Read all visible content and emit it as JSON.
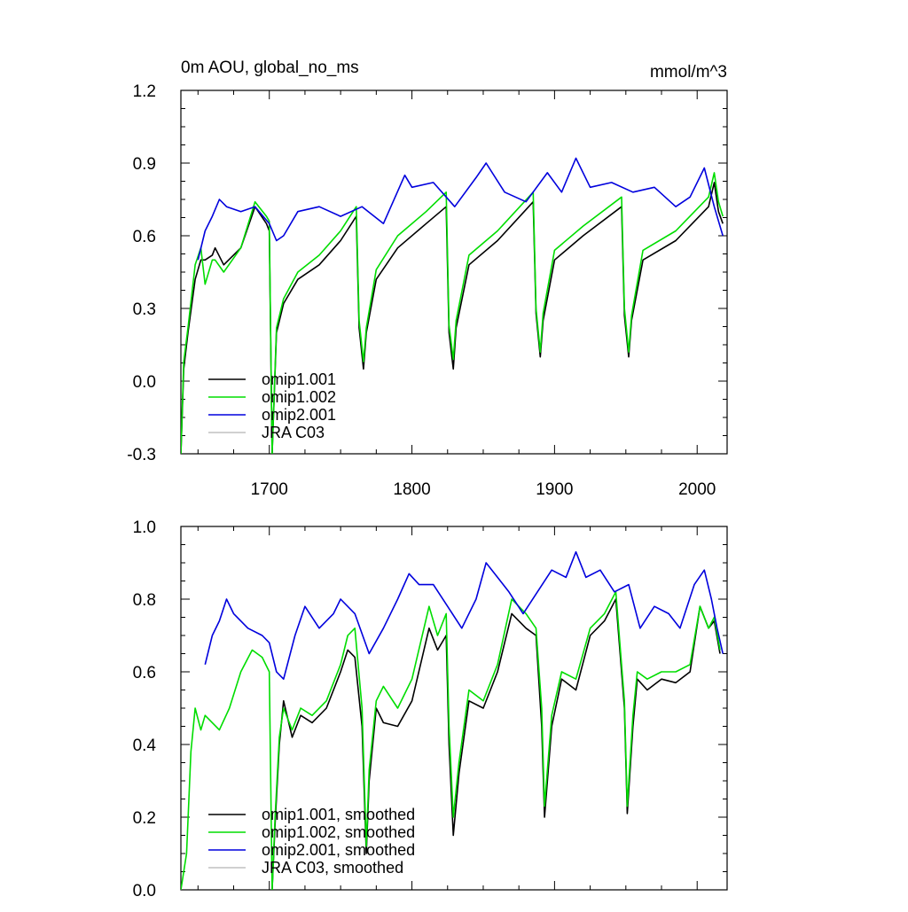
{
  "chart_data": [
    {
      "type": "line",
      "title": "0m AOU, global_no_ms",
      "units": "mmol/m^3",
      "xlim": [
        1638,
        2021
      ],
      "ylim": [
        -0.3,
        1.2
      ],
      "xticks": [
        {
          "value": 1700,
          "label": "1700"
        },
        {
          "value": 1800,
          "label": "1800"
        },
        {
          "value": 1900,
          "label": "1900"
        },
        {
          "value": 2000,
          "label": "2000"
        }
      ],
      "yticks": [
        {
          "value": 1.2,
          "label": "1.2"
        },
        {
          "value": 0.9,
          "label": "0.9"
        },
        {
          "value": 0.6,
          "label": "0.6"
        },
        {
          "value": 0.3,
          "label": "0.3"
        },
        {
          "value": 0.0,
          "label": "0.0"
        },
        {
          "value": -0.3,
          "label": "-0.3"
        }
      ],
      "legend_position": "bottom-left",
      "series": [
        {
          "name": "omip1.001",
          "color": "#000000",
          "x": [
            1638,
            1640,
            1643,
            1648,
            1652,
            1655,
            1660,
            1662,
            1668,
            1680,
            1690,
            1698,
            1700,
            1702,
            1705,
            1710,
            1720,
            1735,
            1750,
            1761,
            1763,
            1766,
            1768,
            1775,
            1790,
            1810,
            1824,
            1826,
            1829,
            1831,
            1840,
            1860,
            1885,
            1887,
            1890,
            1892,
            1900,
            1920,
            1947,
            1949,
            1952,
            1954,
            1962,
            1985,
            2008,
            2012,
            2015,
            2018
          ],
          "y": [
            -0.3,
            0.05,
            0.2,
            0.42,
            0.5,
            0.5,
            0.52,
            0.55,
            0.48,
            0.55,
            0.72,
            0.65,
            0.62,
            -0.3,
            0.2,
            0.32,
            0.42,
            0.48,
            0.58,
            0.68,
            0.22,
            0.05,
            0.2,
            0.42,
            0.55,
            0.65,
            0.72,
            0.2,
            0.05,
            0.22,
            0.48,
            0.58,
            0.74,
            0.28,
            0.1,
            0.25,
            0.5,
            0.6,
            0.72,
            0.27,
            0.1,
            0.25,
            0.5,
            0.58,
            0.72,
            0.82,
            0.7,
            0.65
          ]
        },
        {
          "name": "omip1.002",
          "color": "#00dd00",
          "x": [
            1638,
            1640,
            1643,
            1648,
            1652,
            1655,
            1660,
            1662,
            1668,
            1680,
            1690,
            1698,
            1700,
            1702,
            1705,
            1710,
            1720,
            1735,
            1750,
            1761,
            1763,
            1766,
            1768,
            1775,
            1790,
            1810,
            1824,
            1826,
            1829,
            1831,
            1840,
            1860,
            1885,
            1887,
            1890,
            1892,
            1900,
            1920,
            1947,
            1949,
            1952,
            1954,
            1962,
            1985,
            2008,
            2012,
            2015,
            2018
          ],
          "y": [
            -0.3,
            0.08,
            0.22,
            0.48,
            0.55,
            0.4,
            0.5,
            0.5,
            0.45,
            0.55,
            0.74,
            0.68,
            0.66,
            -0.3,
            0.22,
            0.34,
            0.45,
            0.52,
            0.62,
            0.72,
            0.25,
            0.08,
            0.22,
            0.46,
            0.6,
            0.7,
            0.78,
            0.23,
            0.09,
            0.25,
            0.52,
            0.62,
            0.78,
            0.3,
            0.12,
            0.28,
            0.54,
            0.64,
            0.76,
            0.3,
            0.12,
            0.27,
            0.54,
            0.62,
            0.76,
            0.86,
            0.74,
            0.68
          ]
        },
        {
          "name": "omip2.001",
          "color": "#0000dd",
          "x": [
            1650,
            1655,
            1660,
            1665,
            1670,
            1680,
            1690,
            1700,
            1705,
            1710,
            1720,
            1735,
            1750,
            1765,
            1780,
            1795,
            1800,
            1815,
            1830,
            1845,
            1852,
            1865,
            1880,
            1895,
            1905,
            1915,
            1925,
            1940,
            1955,
            1970,
            1985,
            1995,
            2005,
            2012,
            2018
          ],
          "y": [
            0.5,
            0.62,
            0.68,
            0.75,
            0.72,
            0.7,
            0.72,
            0.65,
            0.58,
            0.6,
            0.7,
            0.72,
            0.68,
            0.72,
            0.65,
            0.85,
            0.8,
            0.82,
            0.72,
            0.84,
            0.9,
            0.78,
            0.74,
            0.86,
            0.78,
            0.92,
            0.8,
            0.82,
            0.78,
            0.8,
            0.72,
            0.76,
            0.88,
            0.72,
            0.6
          ]
        },
        {
          "name": "JRA C03",
          "color": "#c0c0c0",
          "x": [],
          "y": []
        }
      ]
    },
    {
      "type": "line",
      "xlim": [
        1638,
        2021
      ],
      "ylim": [
        0.0,
        1.0
      ],
      "yticks": [
        {
          "value": 1.0,
          "label": "1.0"
        },
        {
          "value": 0.8,
          "label": "0.8"
        },
        {
          "value": 0.6,
          "label": "0.6"
        },
        {
          "value": 0.4,
          "label": "0.4"
        },
        {
          "value": 0.2,
          "label": "0.2"
        },
        {
          "value": 0.0,
          "label": "0.0"
        }
      ],
      "legend_position": "bottom-left",
      "series": [
        {
          "name": "omip1.001, smoothed",
          "color": "#000000",
          "x": [
            1702,
            1704,
            1707,
            1710,
            1716,
            1722,
            1730,
            1740,
            1750,
            1755,
            1760,
            1765,
            1768,
            1770,
            1775,
            1780,
            1790,
            1800,
            1812,
            1818,
            1824,
            1826,
            1829,
            1833,
            1840,
            1850,
            1860,
            1870,
            1880,
            1887,
            1891,
            1893,
            1898,
            1905,
            1915,
            1925,
            1935,
            1943,
            1949,
            1951,
            1955,
            1958,
            1965,
            1975,
            1985,
            1995,
            2002,
            2008,
            2012,
            2016
          ],
          "y": [
            0.0,
            0.18,
            0.4,
            0.52,
            0.42,
            0.48,
            0.46,
            0.5,
            0.6,
            0.66,
            0.64,
            0.45,
            0.1,
            0.3,
            0.5,
            0.46,
            0.45,
            0.52,
            0.72,
            0.66,
            0.7,
            0.4,
            0.15,
            0.32,
            0.52,
            0.5,
            0.6,
            0.76,
            0.72,
            0.7,
            0.45,
            0.2,
            0.45,
            0.58,
            0.55,
            0.7,
            0.74,
            0.8,
            0.5,
            0.21,
            0.45,
            0.58,
            0.55,
            0.58,
            0.57,
            0.6,
            0.78,
            0.72,
            0.74,
            0.65
          ]
        },
        {
          "name": "omip1.002, smoothed",
          "color": "#00dd00",
          "x": [
            1638,
            1642,
            1645,
            1648,
            1652,
            1655,
            1660,
            1665,
            1672,
            1680,
            1688,
            1695,
            1700,
            1702,
            1704,
            1707,
            1710,
            1716,
            1722,
            1730,
            1740,
            1750,
            1755,
            1760,
            1765,
            1768,
            1770,
            1775,
            1780,
            1790,
            1800,
            1812,
            1818,
            1824,
            1826,
            1829,
            1833,
            1840,
            1850,
            1860,
            1870,
            1880,
            1887,
            1891,
            1893,
            1898,
            1905,
            1915,
            1925,
            1935,
            1943,
            1949,
            1951,
            1955,
            1958,
            1965,
            1975,
            1985,
            1995,
            2002,
            2008,
            2012,
            2016
          ],
          "y": [
            0.0,
            0.1,
            0.38,
            0.5,
            0.44,
            0.48,
            0.46,
            0.44,
            0.5,
            0.6,
            0.66,
            0.64,
            0.6,
            0.0,
            0.2,
            0.42,
            0.5,
            0.44,
            0.5,
            0.48,
            0.52,
            0.62,
            0.7,
            0.72,
            0.5,
            0.12,
            0.33,
            0.52,
            0.56,
            0.5,
            0.58,
            0.78,
            0.7,
            0.76,
            0.45,
            0.2,
            0.35,
            0.55,
            0.52,
            0.62,
            0.8,
            0.76,
            0.72,
            0.5,
            0.23,
            0.48,
            0.6,
            0.58,
            0.72,
            0.76,
            0.82,
            0.52,
            0.23,
            0.48,
            0.6,
            0.58,
            0.6,
            0.6,
            0.62,
            0.78,
            0.72,
            0.75,
            0.66
          ]
        },
        {
          "name": "omip2.001, smoothed",
          "color": "#0000dd",
          "x": [
            1655,
            1660,
            1665,
            1670,
            1675,
            1685,
            1695,
            1700,
            1705,
            1710,
            1718,
            1725,
            1735,
            1745,
            1750,
            1760,
            1770,
            1780,
            1790,
            1798,
            1805,
            1815,
            1825,
            1835,
            1845,
            1852,
            1860,
            1868,
            1878,
            1888,
            1898,
            1908,
            1915,
            1922,
            1932,
            1942,
            1952,
            1960,
            1970,
            1980,
            1988,
            1998,
            2005,
            2010,
            2014,
            2018
          ],
          "y": [
            0.62,
            0.7,
            0.74,
            0.8,
            0.76,
            0.72,
            0.7,
            0.68,
            0.6,
            0.58,
            0.7,
            0.78,
            0.72,
            0.76,
            0.8,
            0.76,
            0.65,
            0.72,
            0.8,
            0.87,
            0.84,
            0.84,
            0.78,
            0.72,
            0.8,
            0.9,
            0.86,
            0.82,
            0.76,
            0.82,
            0.88,
            0.86,
            0.93,
            0.86,
            0.88,
            0.82,
            0.84,
            0.72,
            0.78,
            0.76,
            0.72,
            0.84,
            0.88,
            0.8,
            0.72,
            0.65
          ]
        },
        {
          "name": "JRA C03, smoothed",
          "color": "#c0c0c0",
          "x": [],
          "y": []
        }
      ]
    }
  ]
}
